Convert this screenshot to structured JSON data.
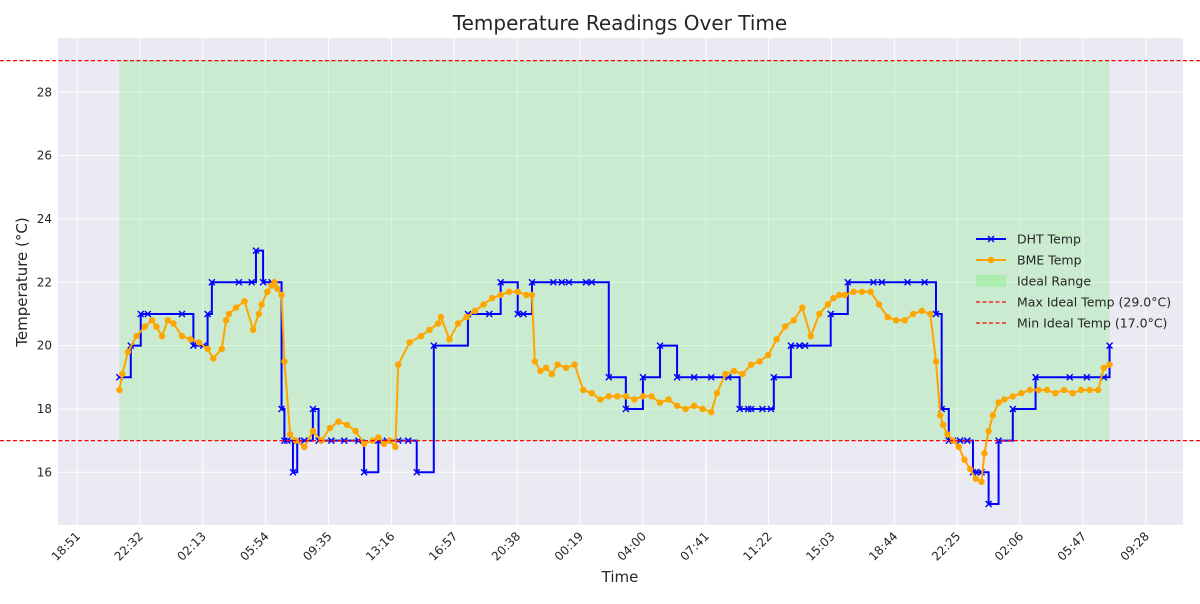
{
  "chart_data": {
    "type": "line",
    "title": "Temperature Readings Over Time",
    "xlabel": "Time",
    "ylabel": "Temperature (°C)",
    "x_unit": "time of day",
    "x_start": "18:51",
    "x_end": "09:28",
    "xticks": [
      "18:51",
      "22:32",
      "02:13",
      "05:54",
      "09:35",
      "13:16",
      "16:57",
      "20:38",
      "00:19",
      "04:00",
      "07:41",
      "11:22",
      "15:03",
      "18:44",
      "22:25",
      "02:06",
      "05:47",
      "09:28"
    ],
    "xtick_spacing_hours": 3.683,
    "ylim": [
      14.4,
      29.65
    ],
    "yticks": [
      16,
      18,
      20,
      22,
      24,
      26,
      28
    ],
    "grid": true,
    "legend_position": "center-right",
    "ideal_range": {
      "min": 17.0,
      "max": 29.0,
      "label": "Ideal Range",
      "color": "#90ee90"
    },
    "reference_lines": [
      {
        "name": "Max Ideal Temp (29.0°C)",
        "value": 29.0,
        "color": "#ff0000",
        "style": "dashed"
      },
      {
        "name": "Min Ideal Temp (17.0°C)",
        "value": 17.0,
        "color": "#ff0000",
        "style": "dashed"
      }
    ],
    "series": [
      {
        "name": "DHT Temp",
        "color": "#0000ff",
        "marker": "x",
        "step": true,
        "x": [
          "21:20",
          "22:00",
          "22:35",
          "23:00",
          "01:00",
          "01:40",
          "02:15",
          "02:30",
          "02:45",
          "04:20",
          "05:05",
          "05:20",
          "05:45",
          "06:15",
          "06:50",
          "07:00",
          "07:10",
          "07:30",
          "07:45",
          "08:10",
          "08:40",
          "09:00",
          "09:45",
          "10:30",
          "11:20",
          "11:40",
          "12:30",
          "13:00",
          "13:40",
          "14:15",
          "14:45",
          "15:45",
          "17:45",
          "19:00",
          "19:40",
          "20:40",
          "21:00",
          "21:30",
          "22:45",
          "23:15",
          "23:40",
          "00:40",
          "01:00",
          "02:00",
          "03:00",
          "04:00",
          "05:00",
          "06:00",
          "07:00",
          "08:00",
          "09:00",
          "09:40",
          "10:10",
          "10:20",
          "11:00",
          "11:30",
          "11:40",
          "12:40",
          "13:10",
          "13:30",
          "15:00",
          "16:00",
          "17:30",
          "18:00",
          "19:30",
          "20:30",
          "21:10",
          "21:30",
          "21:55",
          "22:10",
          "22:35",
          "23:00",
          "23:20",
          "23:30",
          "23:50",
          "00:15",
          "00:50",
          "01:40",
          "03:00",
          "05:00",
          "06:00",
          "07:00",
          "07:20"
        ],
        "y": [
          19,
          20,
          21,
          21,
          21,
          20,
          20,
          21,
          22,
          22,
          22,
          23,
          22,
          22,
          18,
          17,
          17,
          16,
          17,
          17,
          18,
          17,
          17,
          17,
          17,
          16,
          17,
          17,
          17,
          17,
          16,
          20,
          21,
          21,
          22,
          21,
          21,
          22,
          22,
          22,
          22,
          22,
          22,
          19,
          18,
          19,
          20,
          19,
          19,
          19,
          19,
          18,
          18,
          18,
          18,
          18,
          19,
          20,
          20,
          20,
          21,
          22,
          22,
          22,
          22,
          22,
          21,
          18,
          17,
          17,
          17,
          17,
          16,
          16,
          16,
          15,
          17,
          18,
          19,
          19,
          19,
          19,
          20
        ]
      },
      {
        "name": "BME Temp",
        "color": "#ffa500",
        "marker": "o",
        "step": false,
        "x": [
          "21:20",
          "21:30",
          "21:50",
          "22:20",
          "22:50",
          "23:15",
          "23:30",
          "23:50",
          "00:10",
          "00:30",
          "01:00",
          "01:30",
          "02:00",
          "02:30",
          "02:50",
          "03:20",
          "03:35",
          "03:45",
          "04:10",
          "04:40",
          "05:10",
          "05:30",
          "05:40",
          "06:00",
          "06:15",
          "06:25",
          "06:35",
          "06:50",
          "07:00",
          "07:20",
          "07:40",
          "08:10",
          "08:40",
          "09:10",
          "09:40",
          "10:10",
          "10:40",
          "11:10",
          "11:40",
          "12:10",
          "12:30",
          "12:50",
          "13:10",
          "13:30",
          "13:40",
          "14:20",
          "15:00",
          "15:30",
          "16:00",
          "16:10",
          "16:40",
          "17:10",
          "17:40",
          "18:10",
          "18:40",
          "19:10",
          "19:40",
          "20:10",
          "20:40",
          "21:10",
          "21:30",
          "21:40",
          "22:00",
          "22:20",
          "22:40",
          "23:00",
          "23:30",
          "00:00",
          "00:30",
          "01:00",
          "01:30",
          "02:00",
          "02:30",
          "03:00",
          "03:30",
          "04:00",
          "04:30",
          "05:00",
          "05:30",
          "06:00",
          "06:30",
          "07:00",
          "07:30",
          "08:00",
          "08:20",
          "08:50",
          "09:20",
          "09:50",
          "10:20",
          "10:50",
          "11:20",
          "11:50",
          "12:20",
          "12:50",
          "13:20",
          "13:50",
          "14:20",
          "14:50",
          "15:10",
          "15:30",
          "15:50",
          "16:20",
          "16:50",
          "17:20",
          "17:50",
          "18:20",
          "18:50",
          "19:20",
          "19:50",
          "20:20",
          "20:50",
          "21:10",
          "21:25",
          "21:35",
          "21:50",
          "22:10",
          "22:30",
          "22:50",
          "23:10",
          "23:30",
          "23:50",
          "00:00",
          "00:15",
          "00:30",
          "00:50",
          "01:10",
          "01:40",
          "02:10",
          "02:40",
          "03:10",
          "03:40",
          "04:10",
          "04:40",
          "05:10",
          "05:40",
          "06:10",
          "06:40",
          "07:00",
          "07:20"
        ],
        "y": [
          18.6,
          19.1,
          19.8,
          20.3,
          20.6,
          20.8,
          20.6,
          20.3,
          20.8,
          20.7,
          20.3,
          20.2,
          20.1,
          19.9,
          19.6,
          19.9,
          20.8,
          21.0,
          21.2,
          21.4,
          20.5,
          21.0,
          21.3,
          21.7,
          21.9,
          22.0,
          21.8,
          21.6,
          19.5,
          17.2,
          17.0,
          16.8,
          17.3,
          17.0,
          17.4,
          17.6,
          17.5,
          17.3,
          16.9,
          17.0,
          17.1,
          16.9,
          17.0,
          16.8,
          19.4,
          20.1,
          20.3,
          20.5,
          20.7,
          20.9,
          20.2,
          20.7,
          20.9,
          21.1,
          21.3,
          21.5,
          21.6,
          21.7,
          21.7,
          21.6,
          21.6,
          19.5,
          19.2,
          19.3,
          19.1,
          19.4,
          19.3,
          19.4,
          18.6,
          18.5,
          18.3,
          18.4,
          18.4,
          18.4,
          18.3,
          18.4,
          18.4,
          18.2,
          18.3,
          18.1,
          18.0,
          18.1,
          18.0,
          17.9,
          18.5,
          19.1,
          19.2,
          19.1,
          19.4,
          19.5,
          19.7,
          20.2,
          20.6,
          20.8,
          21.2,
          20.3,
          21.0,
          21.3,
          21.5,
          21.6,
          21.6,
          21.7,
          21.7,
          21.7,
          21.3,
          20.9,
          20.8,
          20.8,
          21.0,
          21.1,
          21.0,
          19.5,
          17.8,
          17.5,
          17.2,
          17.0,
          16.8,
          16.4,
          16.1,
          15.8,
          15.7,
          16.6,
          17.3,
          17.8,
          18.2,
          18.3,
          18.4,
          18.5,
          18.6,
          18.6,
          18.6,
          18.5,
          18.6,
          18.5,
          18.6,
          18.6,
          18.6,
          19.3,
          19.4
        ]
      }
    ]
  }
}
